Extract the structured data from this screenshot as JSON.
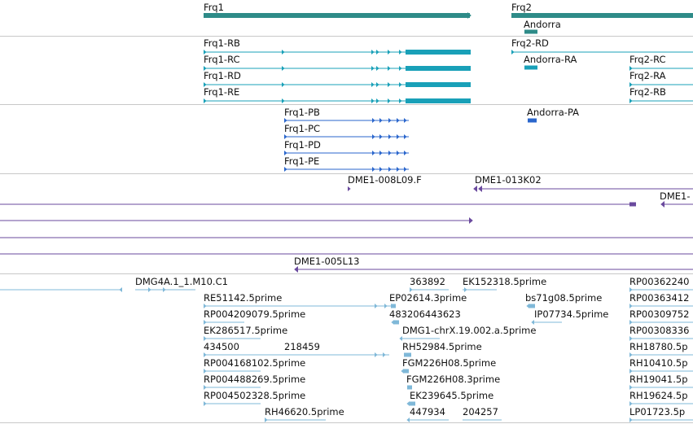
{
  "colors": {
    "gene": "#2e8b88",
    "transcript": "#19a0b8",
    "protein": "#2a66cc",
    "clone": "#6a4a9e",
    "est": "#7fb8d8",
    "separator": "#c8c8c8"
  },
  "tracks": {
    "genes": [
      {
        "name": "Frq1"
      },
      {
        "name": "Frq2"
      },
      {
        "name": "Andorra"
      }
    ],
    "transcripts": [
      {
        "name": "Frq1-RB"
      },
      {
        "name": "Frq1-RC"
      },
      {
        "name": "Frq1-RD"
      },
      {
        "name": "Frq1-RE"
      },
      {
        "name": "Frq2-RD"
      },
      {
        "name": "Andorra-RA"
      },
      {
        "name": "Frq2-RC"
      },
      {
        "name": "Frq2-RA"
      },
      {
        "name": "Frq2-RB"
      }
    ],
    "proteins": [
      {
        "name": "Frq1-PB"
      },
      {
        "name": "Frq1-PC"
      },
      {
        "name": "Frq1-PD"
      },
      {
        "name": "Frq1-PE"
      },
      {
        "name": "Andorra-PA"
      }
    ],
    "clones": [
      {
        "name": "DME1-008L09.F"
      },
      {
        "name": "DME1-013K02"
      },
      {
        "name": "DME1-"
      },
      {
        "name": "DME1-005L13"
      }
    ],
    "ests": [
      {
        "name": "DMG4A.1_1.M10.C1"
      },
      {
        "name": "363892"
      },
      {
        "name": "EK152318.5prime"
      },
      {
        "name": "RP00362240"
      },
      {
        "name": "RE51142.5prime"
      },
      {
        "name": "EP02614.3prime"
      },
      {
        "name": "bs71g08.5prime"
      },
      {
        "name": "RP00363412"
      },
      {
        "name": "RP004209079.5prime"
      },
      {
        "name": "483206443623"
      },
      {
        "name": "IP07734.5prime"
      },
      {
        "name": "RP00309752"
      },
      {
        "name": "EK286517.5prime"
      },
      {
        "name": "DMG1-chrX.19.002.a.5prime"
      },
      {
        "name": "RP00308336"
      },
      {
        "name": "434500"
      },
      {
        "name": "218459"
      },
      {
        "name": "RH52984.5prime"
      },
      {
        "name": "RH18780.5p"
      },
      {
        "name": "RP004168102.5prime"
      },
      {
        "name": "FGM226H08.5prime"
      },
      {
        "name": "RH10410.5p"
      },
      {
        "name": "RP004488269.5prime"
      },
      {
        "name": "FGM226H08.3prime"
      },
      {
        "name": "RH19041.5p"
      },
      {
        "name": "RP004502328.5prime"
      },
      {
        "name": "EK239645.5prime"
      },
      {
        "name": "RH19624.5p"
      },
      {
        "name": "RH46620.5prime"
      },
      {
        "name": "447934"
      },
      {
        "name": "204257"
      },
      {
        "name": "LP01723.5p"
      }
    ]
  }
}
